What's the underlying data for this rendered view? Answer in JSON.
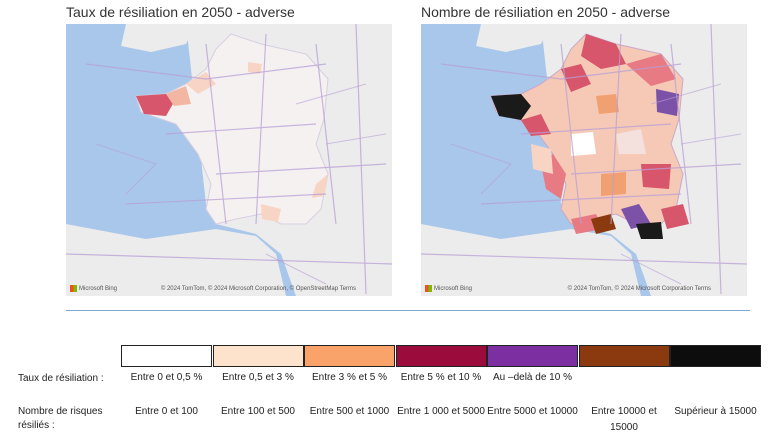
{
  "maps": [
    {
      "title": "Taux de résiliation en 2050 - adverse",
      "credit": "© 2024 TomTom, © 2024 Microsoft Corporation, © OpenStreetMap  Terms",
      "logo": "Microsoft Bing"
    },
    {
      "title": "Nombre de résiliation en 2050 - adverse",
      "credit": "© 2024 TomTom, © 2024 Microsoft Corporation  Terms",
      "logo": "Microsoft Bing"
    }
  ],
  "legend": {
    "rate_label": "Taux de résiliation :",
    "count_label": "Nombre de risques résiliés :",
    "classes": [
      {
        "color": "#ffffff",
        "rate": "Entre 0 et 0,5 %",
        "count": "Entre 0 et 100"
      },
      {
        "color": "#fde3cc",
        "rate": "Entre 0,5 et 3 %",
        "count": "Entre 100 et 500"
      },
      {
        "color": "#f9a36a",
        "rate": "Entre 3 % et 5 %",
        "count": "Entre 500 et 1000"
      },
      {
        "color": "#9b0b3b",
        "rate": "Entre 5 % et 10 %",
        "count": "Entre 1 000 et 5000"
      },
      {
        "color": "#7b2fa0",
        "rate": "Au –delà de 10 %",
        "count": "Entre 5000 et 10000"
      },
      {
        "color": "#8b3a0f",
        "rate": "",
        "count": "Entre 10000 et 15000"
      },
      {
        "color": "#0d0d0d",
        "rate": "",
        "count": "Supérieur à 15000"
      }
    ]
  }
}
